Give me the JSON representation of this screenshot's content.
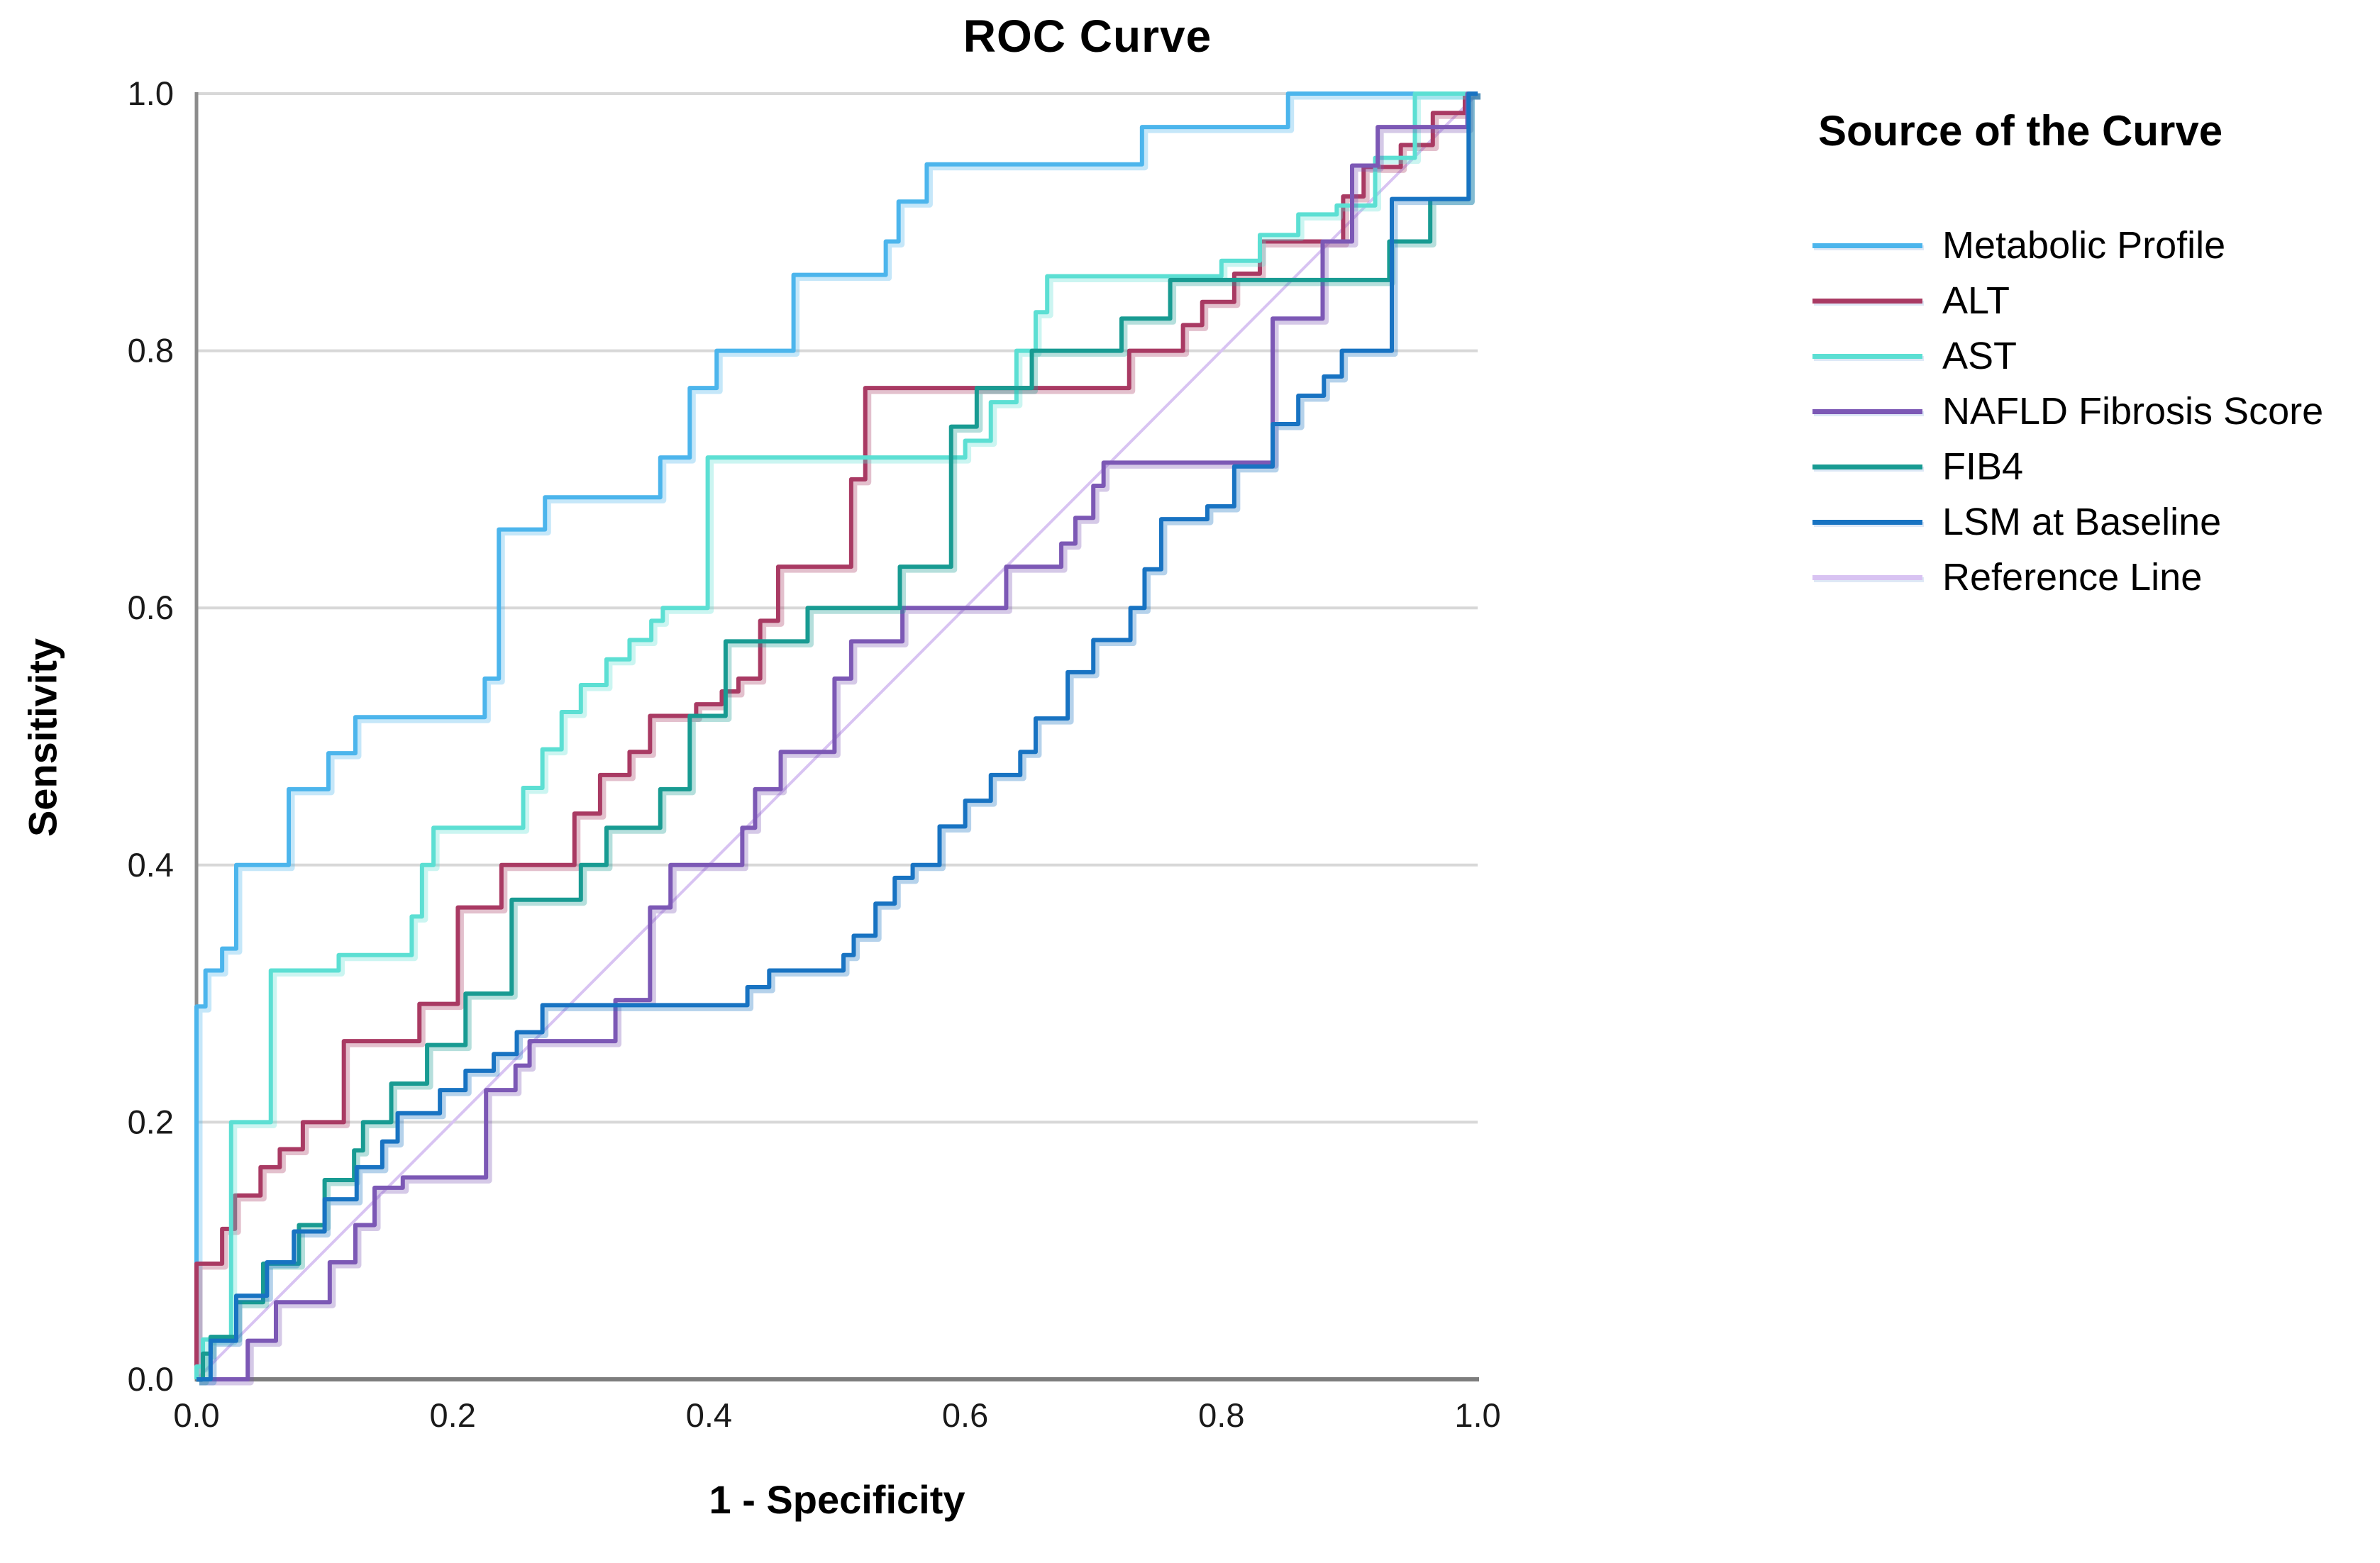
{
  "chart": {
    "title": "ROC Curve",
    "x_axis_label": "1 - Specificity",
    "y_axis_label": "Sensitivity",
    "x_ticks": [
      "0.0",
      "0.2",
      "0.4",
      "0.6",
      "0.8",
      "1.0"
    ],
    "y_ticks": [
      "0.0",
      "0.2",
      "0.4",
      "0.6",
      "0.8",
      "1.0"
    ]
  },
  "legend": {
    "title": "Source of the Curve",
    "items": [
      {
        "label": "Metabolic Profile"
      },
      {
        "label": "ALT"
      },
      {
        "label": "AST"
      },
      {
        "label": "NAFLD Fibrosis Score"
      },
      {
        "label": "FIB4"
      },
      {
        "label": "LSM at Baseline"
      },
      {
        "label": "Reference Line"
      }
    ]
  },
  "chart_data": {
    "type": "line",
    "subtype": "roc-step-curves",
    "title": "ROC Curve",
    "xlabel": "1 - Specificity",
    "ylabel": "Sensitivity",
    "xlim": [
      0,
      1
    ],
    "ylim": [
      0,
      1
    ],
    "grid": "horizontal-only",
    "gridline_values": [
      0.2,
      0.4,
      0.6,
      0.8,
      1.0
    ],
    "legend_position": "right",
    "colors": {
      "grid": "#d8d8d8",
      "axis": "#8c8c8c",
      "tick_text": "#1a1a1a"
    },
    "series": [
      {
        "name": "Metabolic Profile",
        "color": "#4cb5ec",
        "style": "step",
        "points": [
          [
            0,
            0
          ],
          [
            0,
            0.29
          ],
          [
            0.007,
            0.318
          ],
          [
            0.02,
            0.335
          ],
          [
            0.031,
            0.365
          ],
          [
            0.031,
            0.4
          ],
          [
            0.072,
            0.459
          ],
          [
            0.103,
            0.487
          ],
          [
            0.124,
            0.515
          ],
          [
            0.225,
            0.545
          ],
          [
            0.236,
            0.661
          ],
          [
            0.272,
            0.686
          ],
          [
            0.362,
            0.717
          ],
          [
            0.385,
            0.771
          ],
          [
            0.406,
            0.8
          ],
          [
            0.466,
            0.859
          ],
          [
            0.538,
            0.885
          ],
          [
            0.548,
            0.916
          ],
          [
            0.57,
            0.945
          ],
          [
            0.738,
            0.974
          ],
          [
            0.852,
            1
          ],
          [
            1,
            1
          ]
        ]
      },
      {
        "name": "ALT",
        "color": "#a93a63",
        "style": "step",
        "points": [
          [
            0,
            0
          ],
          [
            0,
            0.09
          ],
          [
            0.02,
            0.117
          ],
          [
            0.03,
            0.143
          ],
          [
            0.05,
            0.165
          ],
          [
            0.065,
            0.179
          ],
          [
            0.083,
            0.2
          ],
          [
            0.115,
            0.263
          ],
          [
            0.174,
            0.292
          ],
          [
            0.204,
            0.367
          ],
          [
            0.238,
            0.4
          ],
          [
            0.295,
            0.44
          ],
          [
            0.315,
            0.47
          ],
          [
            0.338,
            0.488
          ],
          [
            0.354,
            0.516
          ],
          [
            0.39,
            0.525
          ],
          [
            0.41,
            0.535
          ],
          [
            0.423,
            0.545
          ],
          [
            0.44,
            0.59
          ],
          [
            0.454,
            0.632
          ],
          [
            0.511,
            0.7
          ],
          [
            0.522,
            0.771
          ],
          [
            0.728,
            0.8
          ],
          [
            0.77,
            0.82
          ],
          [
            0.785,
            0.838
          ],
          [
            0.81,
            0.86
          ],
          [
            0.83,
            0.885
          ],
          [
            0.895,
            0.92
          ],
          [
            0.911,
            0.943
          ],
          [
            0.94,
            0.96
          ],
          [
            0.965,
            0.985
          ],
          [
            0.99,
            1
          ],
          [
            1,
            1
          ]
        ]
      },
      {
        "name": "AST",
        "color": "#5cdfd3",
        "style": "step",
        "points": [
          [
            0,
            0
          ],
          [
            0,
            0.01
          ],
          [
            0.005,
            0.031
          ],
          [
            0.027,
            0.2
          ],
          [
            0.058,
            0.318
          ],
          [
            0.111,
            0.33
          ],
          [
            0.168,
            0.36
          ],
          [
            0.176,
            0.4
          ],
          [
            0.185,
            0.429
          ],
          [
            0.255,
            0.46
          ],
          [
            0.27,
            0.49
          ],
          [
            0.285,
            0.519
          ],
          [
            0.3,
            0.54
          ],
          [
            0.32,
            0.56
          ],
          [
            0.338,
            0.575
          ],
          [
            0.355,
            0.59
          ],
          [
            0.364,
            0.6
          ],
          [
            0.399,
            0.717
          ],
          [
            0.6,
            0.73
          ],
          [
            0.62,
            0.76
          ],
          [
            0.64,
            0.8
          ],
          [
            0.655,
            0.83
          ],
          [
            0.664,
            0.858
          ],
          [
            0.8,
            0.87
          ],
          [
            0.83,
            0.89
          ],
          [
            0.86,
            0.906
          ],
          [
            0.89,
            0.913
          ],
          [
            0.92,
            0.95
          ],
          [
            0.951,
            1
          ],
          [
            1,
            1
          ]
        ]
      },
      {
        "name": "NAFLD Fibrosis Score",
        "color": "#7c58b5",
        "style": "step",
        "points": [
          [
            0,
            0
          ],
          [
            0.04,
            0.03
          ],
          [
            0.062,
            0.06
          ],
          [
            0.104,
            0.091
          ],
          [
            0.124,
            0.12
          ],
          [
            0.139,
            0.149
          ],
          [
            0.161,
            0.157
          ],
          [
            0.226,
            0.225
          ],
          [
            0.249,
            0.244
          ],
          [
            0.26,
            0.263
          ],
          [
            0.327,
            0.295
          ],
          [
            0.354,
            0.367
          ],
          [
            0.37,
            0.4
          ],
          [
            0.426,
            0.429
          ],
          [
            0.436,
            0.459
          ],
          [
            0.456,
            0.488
          ],
          [
            0.498,
            0.545
          ],
          [
            0.511,
            0.574
          ],
          [
            0.551,
            0.6
          ],
          [
            0.632,
            0.632
          ],
          [
            0.675,
            0.65
          ],
          [
            0.686,
            0.67
          ],
          [
            0.7,
            0.695
          ],
          [
            0.708,
            0.713
          ],
          [
            0.84,
            0.825
          ],
          [
            0.879,
            0.885
          ],
          [
            0.902,
            0.944
          ],
          [
            0.922,
            0.974
          ],
          [
            0.992,
            1
          ],
          [
            1,
            1
          ]
        ]
      },
      {
        "name": "FIB4",
        "color": "#189b92",
        "style": "step",
        "points": [
          [
            0,
            0
          ],
          [
            0.005,
            0.02
          ],
          [
            0.011,
            0.033
          ],
          [
            0.031,
            0.06
          ],
          [
            0.052,
            0.09
          ],
          [
            0.08,
            0.12
          ],
          [
            0.1,
            0.155
          ],
          [
            0.123,
            0.178
          ],
          [
            0.13,
            0.2
          ],
          [
            0.152,
            0.23
          ],
          [
            0.18,
            0.26
          ],
          [
            0.21,
            0.3
          ],
          [
            0.246,
            0.373
          ],
          [
            0.3,
            0.4
          ],
          [
            0.32,
            0.429
          ],
          [
            0.362,
            0.459
          ],
          [
            0.385,
            0.516
          ],
          [
            0.413,
            0.574
          ],
          [
            0.477,
            0.6
          ],
          [
            0.549,
            0.632
          ],
          [
            0.589,
            0.741
          ],
          [
            0.609,
            0.771
          ],
          [
            0.652,
            0.8
          ],
          [
            0.722,
            0.825
          ],
          [
            0.76,
            0.855
          ],
          [
            0.931,
            0.885
          ],
          [
            0.963,
            0.918
          ],
          [
            0.993,
            1
          ],
          [
            1,
            1
          ]
        ]
      },
      {
        "name": "LSM at Baseline",
        "color": "#1873c2",
        "style": "step",
        "points": [
          [
            0,
            0
          ],
          [
            0.011,
            0.03
          ],
          [
            0.031,
            0.065
          ],
          [
            0.055,
            0.091
          ],
          [
            0.076,
            0.115
          ],
          [
            0.1,
            0.14
          ],
          [
            0.125,
            0.165
          ],
          [
            0.145,
            0.185
          ],
          [
            0.157,
            0.207
          ],
          [
            0.19,
            0.225
          ],
          [
            0.21,
            0.24
          ],
          [
            0.232,
            0.253
          ],
          [
            0.25,
            0.27
          ],
          [
            0.27,
            0.291
          ],
          [
            0.43,
            0.305
          ],
          [
            0.447,
            0.318
          ],
          [
            0.505,
            0.33
          ],
          [
            0.513,
            0.345
          ],
          [
            0.53,
            0.37
          ],
          [
            0.545,
            0.39
          ],
          [
            0.559,
            0.4
          ],
          [
            0.58,
            0.43
          ],
          [
            0.6,
            0.45
          ],
          [
            0.62,
            0.47
          ],
          [
            0.643,
            0.488
          ],
          [
            0.655,
            0.514
          ],
          [
            0.68,
            0.55
          ],
          [
            0.7,
            0.575
          ],
          [
            0.729,
            0.6
          ],
          [
            0.74,
            0.63
          ],
          [
            0.753,
            0.669
          ],
          [
            0.789,
            0.679
          ],
          [
            0.81,
            0.71
          ],
          [
            0.84,
            0.743
          ],
          [
            0.86,
            0.765
          ],
          [
            0.88,
            0.78
          ],
          [
            0.894,
            0.8
          ],
          [
            0.933,
            0.918
          ],
          [
            0.993,
            1
          ],
          [
            1,
            1
          ]
        ]
      },
      {
        "name": "Reference Line",
        "color": "#d8c3f2",
        "style": "straight",
        "points": [
          [
            0,
            0
          ],
          [
            1,
            1
          ]
        ]
      }
    ]
  }
}
